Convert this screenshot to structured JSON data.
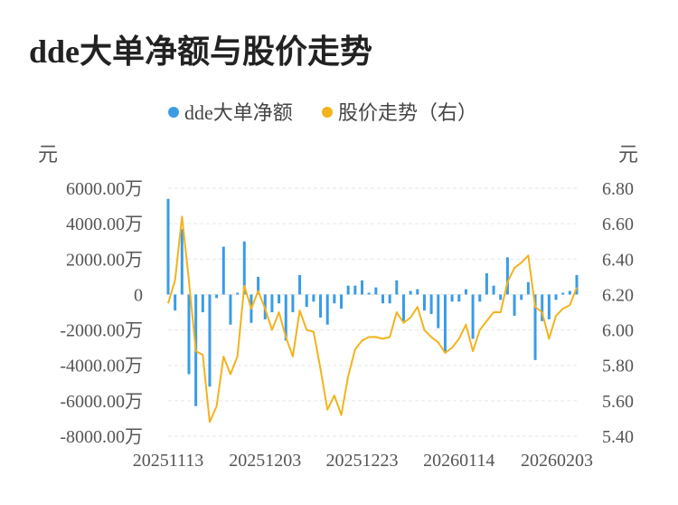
{
  "title": "dde大单净额与股价走势",
  "colors": {
    "bar": "#3a9ce6",
    "line": "#f2b31c",
    "grid": "#e6e6e6"
  },
  "chart_data": {
    "type": "bar+line",
    "legend": [
      {
        "name": "dde大单净额",
        "color": "#3a9ce6"
      },
      {
        "name": "股价走势（右）",
        "color": "#f2b31c"
      }
    ],
    "legend_position": "top-center",
    "y_left": {
      "unit": "元",
      "ylim": [
        -8000,
        6000
      ],
      "ticks": [
        6000,
        4000,
        2000,
        0,
        -2000,
        -4000,
        -6000,
        -8000
      ],
      "tick_labels": [
        "6000.00万",
        "4000.00万",
        "2000.00万",
        "0",
        "-2000.00万",
        "-4000.00万",
        "-6000.00万",
        "-8000.00万"
      ]
    },
    "y_right": {
      "unit": "元",
      "ylim": [
        5.4,
        6.8
      ],
      "ticks": [
        6.8,
        6.6,
        6.4,
        6.2,
        6.0,
        5.8,
        5.6,
        5.4
      ],
      "tick_labels": [
        "6.80",
        "6.60",
        "6.40",
        "6.20",
        "6.00",
        "5.80",
        "5.60",
        "5.40"
      ]
    },
    "x_tick_labels": [
      "20251113",
      "20251203",
      "20251223",
      "20260114",
      "20260203"
    ],
    "x_tick_index": [
      0,
      14,
      28,
      42,
      56
    ],
    "grid": true,
    "series": [
      {
        "name": "dde大单净额",
        "kind": "bar",
        "values": [
          5400,
          -900,
          3700,
          -4500,
          -6300,
          -1000,
          -5200,
          -200,
          2700,
          -1700,
          100,
          3000,
          -1600,
          1000,
          -1400,
          -1000,
          -500,
          -2600,
          -1000,
          1100,
          -700,
          -400,
          -1300,
          -1700,
          -500,
          -800,
          500,
          500,
          800,
          100,
          400,
          -500,
          -500,
          800,
          -1500,
          200,
          300,
          -900,
          -1100,
          -1900,
          -3300,
          -400,
          -400,
          300,
          -2500,
          -400,
          1200,
          500,
          -300,
          2100,
          -1200,
          -300,
          700,
          -3700,
          -1500,
          -1400,
          -300,
          100,
          200,
          1100
        ],
        "unit": "万元"
      },
      {
        "name": "股价走势（右）",
        "kind": "line",
        "axis": "right",
        "values": [
          6.15,
          6.28,
          6.64,
          6.28,
          5.88,
          5.86,
          5.48,
          5.57,
          5.85,
          5.75,
          5.85,
          6.25,
          6.12,
          6.22,
          6.12,
          6.0,
          6.1,
          5.96,
          5.85,
          6.11,
          6.0,
          5.99,
          5.78,
          5.55,
          5.63,
          5.52,
          5.74,
          5.89,
          5.94,
          5.96,
          5.96,
          5.95,
          5.96,
          6.1,
          6.04,
          6.07,
          6.13,
          6.0,
          5.96,
          5.93,
          5.87,
          5.9,
          5.95,
          6.03,
          5.88,
          6.0,
          6.05,
          6.1,
          6.1,
          6.27,
          6.35,
          6.38,
          6.42,
          6.13,
          6.1,
          5.95,
          6.08,
          6.12,
          6.14,
          6.24
        ]
      }
    ]
  }
}
